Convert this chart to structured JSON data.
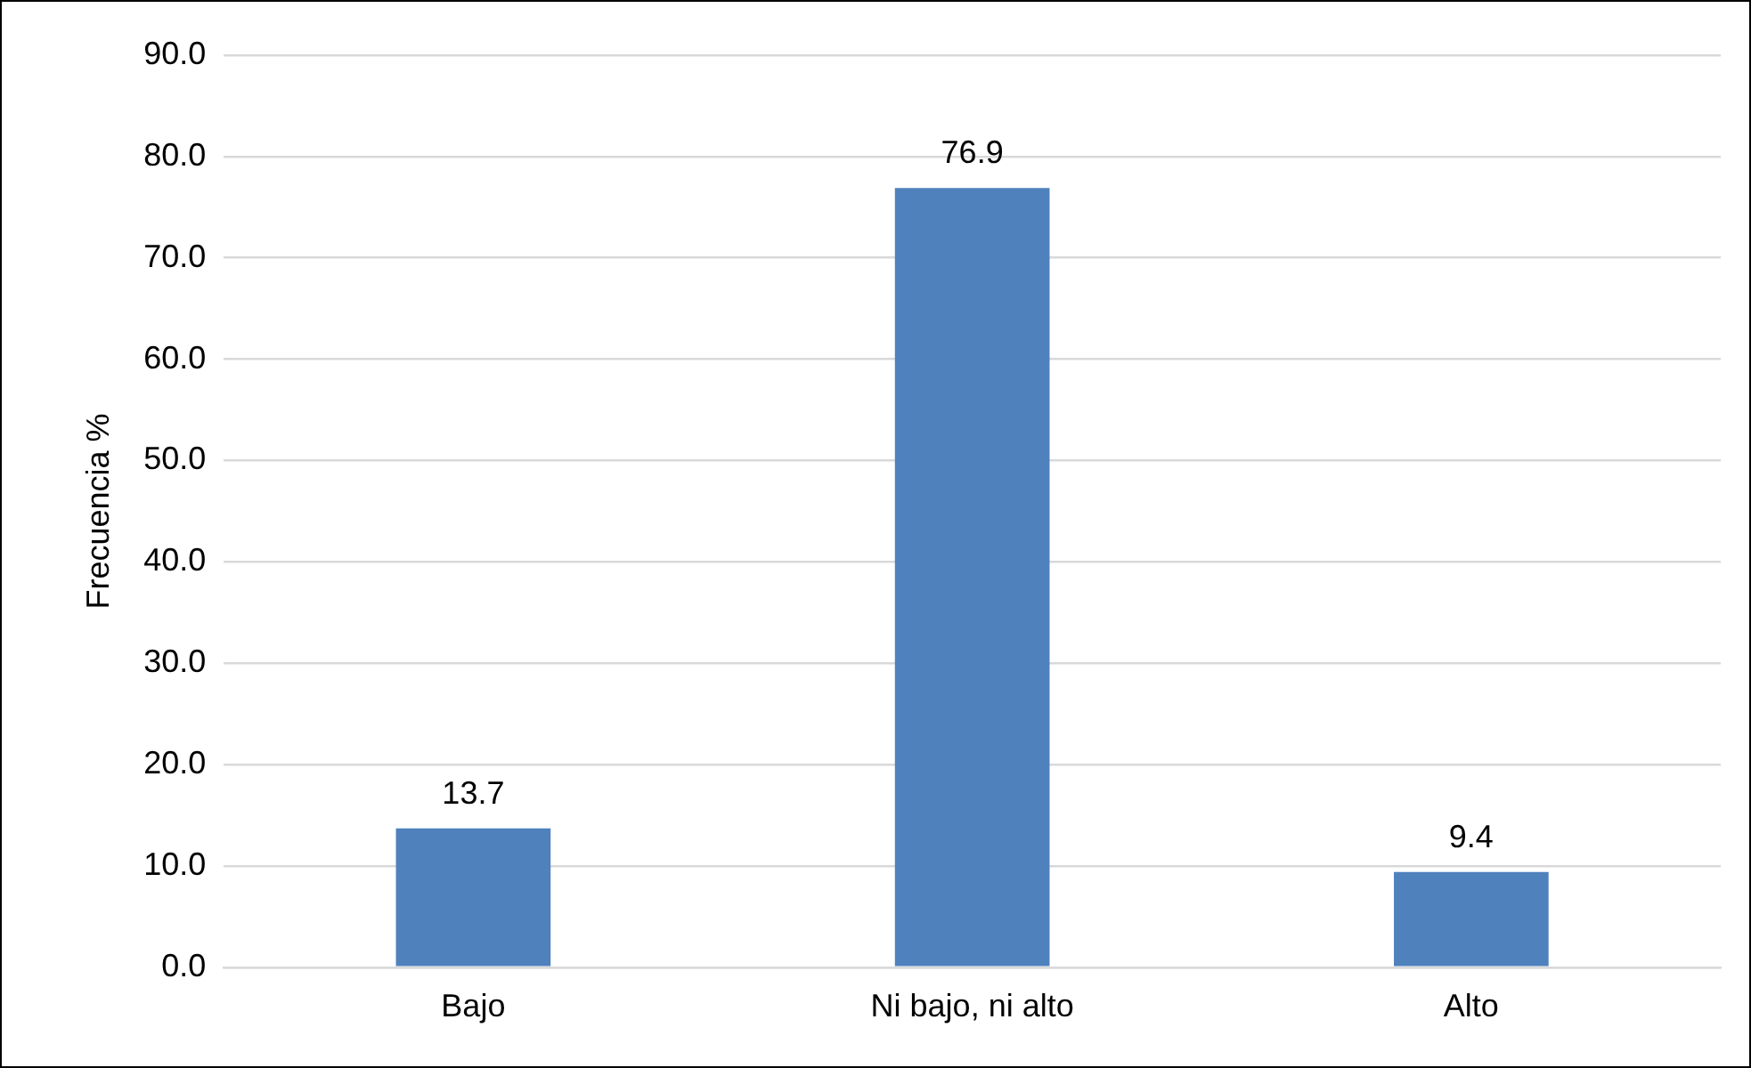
{
  "chart_data": {
    "type": "bar",
    "ylabel": "Frecuencia %",
    "categories": [
      "Bajo",
      "Ni bajo, ni alto",
      "Alto"
    ],
    "values": [
      13.7,
      76.9,
      9.4
    ],
    "color": "#4f81bd",
    "ylim": [
      0,
      90
    ],
    "yticks": [
      {
        "value": 0,
        "label": "0.0"
      },
      {
        "value": 10,
        "label": "10.0"
      },
      {
        "value": 20,
        "label": "20.0"
      },
      {
        "value": 30,
        "label": "30.0"
      },
      {
        "value": 40,
        "label": "40.0"
      },
      {
        "value": 50,
        "label": "50.0"
      },
      {
        "value": 60,
        "label": "60.0"
      },
      {
        "value": 70,
        "label": "70.0"
      },
      {
        "value": 80,
        "label": "80.0"
      },
      {
        "value": 90,
        "label": "90.0"
      }
    ],
    "grid": "y",
    "data_labels": true,
    "legend": false
  }
}
